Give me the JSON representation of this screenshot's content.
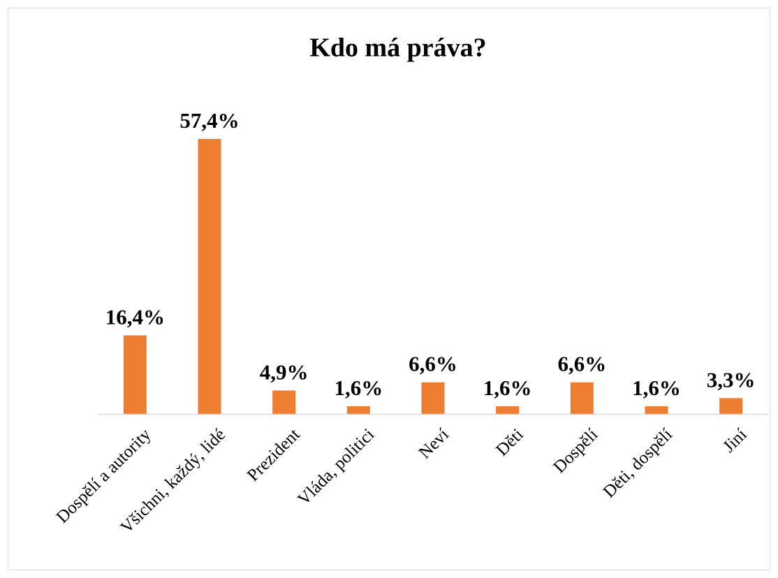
{
  "chart_data": {
    "type": "bar",
    "title": "Kdo má práva?",
    "categories": [
      "Dospělí a autority",
      "Všichni, každý, lidé",
      "Prezident",
      "Vláda, politici",
      "Neví",
      "Děti",
      "Dospělí",
      "Děti, dospělí",
      "Jiní"
    ],
    "values": [
      16.4,
      57.4,
      4.9,
      1.6,
      6.6,
      1.6,
      6.6,
      1.6,
      3.3
    ],
    "value_labels": [
      "16,4%",
      "57,4%",
      "4,9%",
      "1,6%",
      "6,6%",
      "1,6%",
      "6,6%",
      "1,6%",
      "3,3%"
    ],
    "color": "#ed7d31"
  }
}
